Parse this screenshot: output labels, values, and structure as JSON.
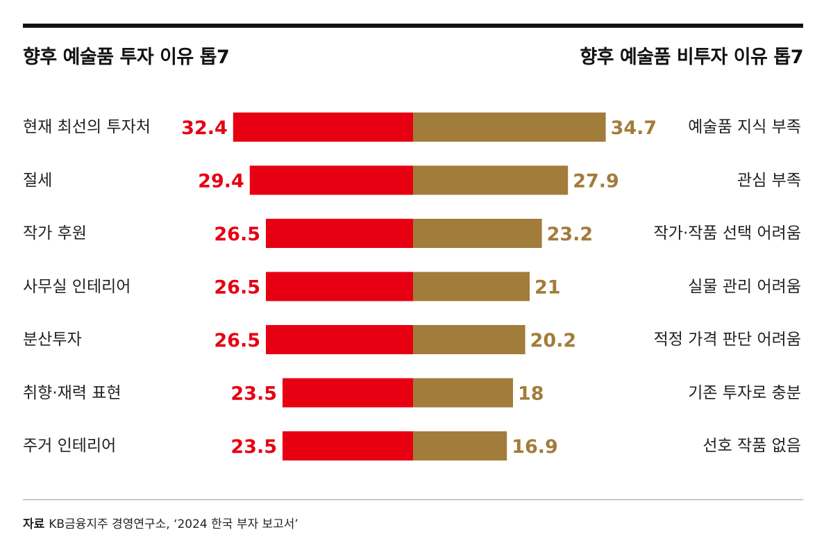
{
  "left_title": "향후 예술품 투자 이유 톱7",
  "right_title": "향후 예술품 비투자 이유 톱7",
  "colors": {
    "left_bar": "#e60012",
    "right_bar": "#a27c3a",
    "left_value": "#e60012",
    "right_value": "#a27c3a"
  },
  "chart_data": {
    "type": "bar",
    "orientation": "horizontal-diverging",
    "left_series": {
      "labels": [
        "현재 최선의 투자처",
        "절세",
        "작가 후원",
        "사무실 인테리어",
        "분산투자",
        "취향·재력 표현",
        "주거 인테리어"
      ],
      "values": [
        32.4,
        29.4,
        26.5,
        26.5,
        26.5,
        23.5,
        23.5
      ],
      "value_labels": [
        "32.4",
        "29.4",
        "26.5",
        "26.5",
        "26.5",
        "23.5",
        "23.5"
      ]
    },
    "right_series": {
      "labels": [
        "예술품 지식 부족",
        "관심 부족",
        "작가·작품 선택 어려움",
        "실물 관리 어려움",
        "적정 가격 판단 어려움",
        "기존 투자로 충분",
        "선호 작품 없음"
      ],
      "values": [
        34.7,
        27.9,
        23.2,
        21,
        20.2,
        18,
        16.9
      ],
      "value_labels": [
        "34.7",
        "27.9",
        "23.2",
        "21",
        "20.2",
        "18",
        "16.9"
      ]
    }
  },
  "source": {
    "label": "자료",
    "text": "KB금융지주 경영연구소, ‘2024 한국 부자 보고서’"
  }
}
